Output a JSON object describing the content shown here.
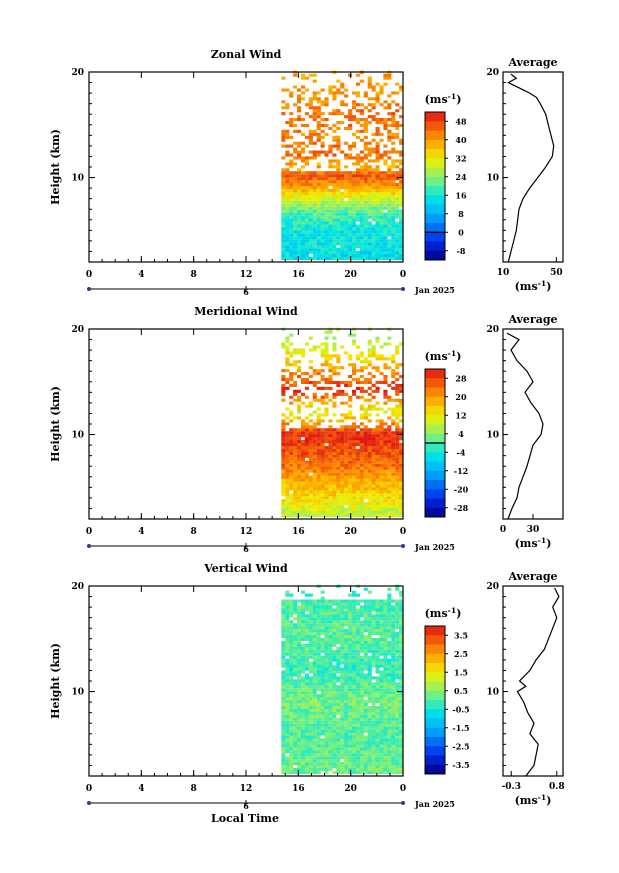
{
  "figure": {
    "xlabel": "Local Time",
    "date_label": "Jan 2025",
    "date_tick": "6"
  },
  "chart_data": [
    {
      "type": "heatmap",
      "title": "Zonal Wind",
      "xlabel": "Local Time",
      "ylabel": "Height (km)",
      "x_ticks": [
        "0",
        "4",
        "8",
        "12",
        "16",
        "20",
        "0"
      ],
      "x_tick_values": [
        0,
        4,
        8,
        12,
        16,
        20,
        24
      ],
      "xlim": [
        0,
        24
      ],
      "y_ticks": [
        "10",
        "20"
      ],
      "y_tick_values": [
        10,
        20
      ],
      "ylim": [
        2,
        20
      ],
      "data_x_range": [
        14.7,
        24
      ],
      "colorbar": {
        "unit": "(ms⁻¹)",
        "ticks": [
          "48",
          "40",
          "32",
          "24",
          "16",
          "8",
          "0",
          "-8"
        ],
        "tick_values": [
          48,
          40,
          32,
          24,
          16,
          8,
          0,
          -8
        ],
        "range": [
          -12,
          52
        ],
        "zero_line": 0
      },
      "profile_band": [
        {
          "y": 3,
          "value": 14
        },
        {
          "y": 5,
          "value": 16
        },
        {
          "y": 6.5,
          "value": 20
        },
        {
          "y": 8,
          "value": 30
        },
        {
          "y": 9,
          "value": 40
        },
        {
          "y": 10,
          "value": 46
        },
        {
          "y": 11,
          "value": 38
        },
        {
          "y": 12,
          "value": 44
        },
        {
          "y": 14,
          "value": 42
        },
        {
          "y": 16,
          "value": 44
        },
        {
          "y": 18,
          "value": 40
        }
      ],
      "average": {
        "title": "Average",
        "xlabel": "(ms⁻¹)",
        "x_ticks": [
          "10",
          "50"
        ],
        "x_tick_values": [
          10,
          50
        ],
        "xlim": [
          10,
          55
        ],
        "y_ticks": [
          "10",
          "20"
        ],
        "y_tick_values": [
          10,
          20
        ],
        "ylim": [
          2,
          20
        ],
        "profile": [
          {
            "y": 2.0,
            "x": 14
          },
          {
            "y": 3.0,
            "x": 16
          },
          {
            "y": 4.0,
            "x": 18
          },
          {
            "y": 5.0,
            "x": 20
          },
          {
            "y": 6.0,
            "x": 21
          },
          {
            "y": 7.0,
            "x": 22
          },
          {
            "y": 8.0,
            "x": 25
          },
          {
            "y": 9.0,
            "x": 30
          },
          {
            "y": 10.0,
            "x": 36
          },
          {
            "y": 11.0,
            "x": 42
          },
          {
            "y": 12.0,
            "x": 47
          },
          {
            "y": 13.0,
            "x": 48
          },
          {
            "y": 14.0,
            "x": 46
          },
          {
            "y": 15.0,
            "x": 44
          },
          {
            "y": 16.0,
            "x": 42
          },
          {
            "y": 17.0,
            "x": 38
          },
          {
            "y": 17.6,
            "x": 35
          },
          {
            "y": 18.0,
            "x": 30
          },
          {
            "y": 18.5,
            "x": 22
          },
          {
            "y": 19.0,
            "x": 14
          },
          {
            "y": 19.4,
            "x": 20
          },
          {
            "y": 19.8,
            "x": 16
          }
        ]
      }
    },
    {
      "type": "heatmap",
      "title": "Meridional Wind",
      "xlabel": "Local Time",
      "ylabel": "Height (km)",
      "x_ticks": [
        "0",
        "4",
        "8",
        "12",
        "16",
        "20",
        "0"
      ],
      "x_tick_values": [
        0,
        4,
        8,
        12,
        16,
        20,
        24
      ],
      "xlim": [
        0,
        24
      ],
      "y_ticks": [
        "10",
        "20"
      ],
      "y_tick_values": [
        10,
        20
      ],
      "ylim": [
        2,
        20
      ],
      "data_x_range": [
        14.7,
        24
      ],
      "colorbar": {
        "unit": "(ms⁻¹)",
        "ticks": [
          "28",
          "20",
          "12",
          "4",
          "-4",
          "-12",
          "-20",
          "-28"
        ],
        "tick_values": [
          28,
          20,
          12,
          4,
          -4,
          -12,
          -20,
          -28
        ],
        "range": [
          -32,
          32
        ],
        "zero_line": 0
      },
      "profile_band": [
        {
          "y": 2.5,
          "value": 8
        },
        {
          "y": 4,
          "value": 14
        },
        {
          "y": 5.5,
          "value": 18
        },
        {
          "y": 7,
          "value": 24
        },
        {
          "y": 9,
          "value": 28
        },
        {
          "y": 10,
          "value": 30
        },
        {
          "y": 12,
          "value": 10
        },
        {
          "y": 14,
          "value": 30
        },
        {
          "y": 16,
          "value": 20
        },
        {
          "y": 17.5,
          "value": 12
        },
        {
          "y": 19,
          "value": 6
        }
      ],
      "average": {
        "title": "Average",
        "xlabel": "(ms⁻¹)",
        "x_ticks": [
          "0",
          "30"
        ],
        "x_tick_values": [
          0,
          30
        ],
        "xlim": [
          0,
          60
        ],
        "y_ticks": [
          "10",
          "20"
        ],
        "y_tick_values": [
          10,
          20
        ],
        "ylim": [
          2,
          20
        ],
        "profile": [
          {
            "y": 2.0,
            "x": 5
          },
          {
            "y": 3.0,
            "x": 9
          },
          {
            "y": 4.0,
            "x": 14
          },
          {
            "y": 5.0,
            "x": 16
          },
          {
            "y": 6.0,
            "x": 20
          },
          {
            "y": 7.0,
            "x": 24
          },
          {
            "y": 8.0,
            "x": 27
          },
          {
            "y": 9.0,
            "x": 30
          },
          {
            "y": 10.0,
            "x": 38
          },
          {
            "y": 11.0,
            "x": 40
          },
          {
            "y": 12.0,
            "x": 36
          },
          {
            "y": 13.0,
            "x": 28
          },
          {
            "y": 14.0,
            "x": 22
          },
          {
            "y": 15.0,
            "x": 30
          },
          {
            "y": 16.0,
            "x": 24
          },
          {
            "y": 17.0,
            "x": 14
          },
          {
            "y": 18.0,
            "x": 8
          },
          {
            "y": 19.0,
            "x": 16
          },
          {
            "y": 19.6,
            "x": 4
          }
        ]
      }
    },
    {
      "type": "heatmap",
      "title": "Vertical Wind",
      "xlabel": "Local Time",
      "ylabel": "Height (km)",
      "x_ticks": [
        "0",
        "4",
        "8",
        "12",
        "16",
        "20",
        "0"
      ],
      "x_tick_values": [
        0,
        4,
        8,
        12,
        16,
        20,
        24
      ],
      "xlim": [
        0,
        24
      ],
      "y_ticks": [
        "10",
        "20"
      ],
      "y_tick_values": [
        10,
        20
      ],
      "ylim": [
        2,
        20
      ],
      "data_x_range": [
        14.7,
        24
      ],
      "colorbar": {
        "unit": "(ms⁻¹)",
        "ticks": [
          "3.5",
          "2.5",
          "1.5",
          "0.5",
          "-0.5",
          "-1.5",
          "-2.5",
          "-3.5"
        ],
        "tick_values": [
          3.5,
          2.5,
          1.5,
          0.5,
          -0.5,
          -1.5,
          -2.5,
          -3.5
        ],
        "range": [
          -4,
          4
        ],
        "zero_line": null
      },
      "profile_band": [
        {
          "y": 3,
          "value": 0.2
        },
        {
          "y": 6,
          "value": 0.0
        },
        {
          "y": 9,
          "value": 0.3
        },
        {
          "y": 12,
          "value": -0.2
        },
        {
          "y": 15,
          "value": 0.1
        },
        {
          "y": 19,
          "value": -0.1
        }
      ],
      "average": {
        "title": "Average",
        "xlabel": "(ms⁻¹)",
        "x_ticks": [
          "-0.3",
          "0.8"
        ],
        "x_tick_values": [
          -0.3,
          0.8
        ],
        "xlim": [
          -0.5,
          0.95
        ],
        "y_ticks": [
          "10",
          "20"
        ],
        "y_tick_values": [
          10,
          20
        ],
        "ylim": [
          2,
          20
        ],
        "profile": [
          {
            "y": 2.0,
            "x": 0.05
          },
          {
            "y": 3.0,
            "x": 0.25
          },
          {
            "y": 4.0,
            "x": 0.3
          },
          {
            "y": 5.0,
            "x": 0.35
          },
          {
            "y": 6.0,
            "x": 0.15
          },
          {
            "y": 7.0,
            "x": 0.25
          },
          {
            "y": 8.0,
            "x": 0.1
          },
          {
            "y": 9.0,
            "x": 0.0
          },
          {
            "y": 10.0,
            "x": -0.15
          },
          {
            "y": 10.5,
            "x": 0.05
          },
          {
            "y": 11.0,
            "x": -0.1
          },
          {
            "y": 12.0,
            "x": 0.15
          },
          {
            "y": 13.0,
            "x": 0.3
          },
          {
            "y": 14.0,
            "x": 0.5
          },
          {
            "y": 15.0,
            "x": 0.6
          },
          {
            "y": 16.0,
            "x": 0.7
          },
          {
            "y": 17.0,
            "x": 0.8
          },
          {
            "y": 18.0,
            "x": 0.7
          },
          {
            "y": 19.0,
            "x": 0.85
          },
          {
            "y": 19.8,
            "x": 0.75
          }
        ]
      }
    }
  ]
}
